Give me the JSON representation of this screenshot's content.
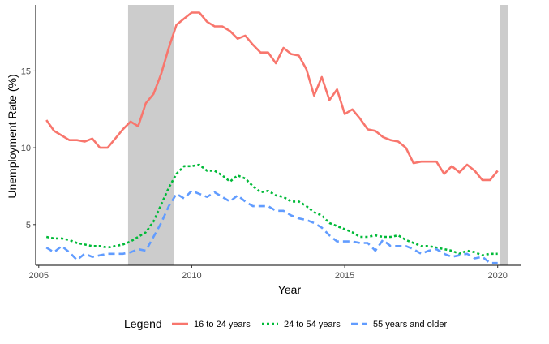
{
  "chart_data": {
    "type": "line",
    "xlabel": "Year",
    "ylabel": "Unemployment Rate (%)",
    "xlim": [
      2004.9,
      2020.75
    ],
    "ylim": [
      2.35,
      19.3
    ],
    "x_ticks": [
      2005,
      2010,
      2015,
      2020
    ],
    "y_ticks": [
      5,
      10,
      15
    ],
    "grid": false,
    "legend_title": "Legend",
    "legend_position": "bottom",
    "recession_shading": [
      {
        "start": 2007.92,
        "end": 2009.42
      },
      {
        "start": 2020.08,
        "end": 2020.33
      }
    ],
    "x": [
      2005.25,
      2005.5,
      2005.75,
      2006.0,
      2006.25,
      2006.5,
      2006.75,
      2007.0,
      2007.25,
      2007.5,
      2007.75,
      2008.0,
      2008.25,
      2008.5,
      2008.75,
      2009.0,
      2009.25,
      2009.5,
      2009.75,
      2010.0,
      2010.25,
      2010.5,
      2010.75,
      2011.0,
      2011.25,
      2011.5,
      2011.75,
      2012.0,
      2012.25,
      2012.5,
      2012.75,
      2013.0,
      2013.25,
      2013.5,
      2013.75,
      2014.0,
      2014.25,
      2014.5,
      2014.75,
      2015.0,
      2015.25,
      2015.5,
      2015.75,
      2016.0,
      2016.25,
      2016.5,
      2016.75,
      2017.0,
      2017.25,
      2017.5,
      2017.75,
      2018.0,
      2018.25,
      2018.5,
      2018.75,
      2019.0,
      2019.25,
      2019.5,
      2019.75,
      2020.0
    ],
    "series": [
      {
        "name": "16 to 24 years",
        "color": "#f8766d",
        "dash": "solid",
        "values": [
          11.8,
          11.1,
          10.8,
          10.5,
          10.5,
          10.4,
          10.6,
          10.0,
          10.0,
          10.6,
          11.2,
          11.7,
          11.4,
          12.9,
          13.5,
          14.8,
          16.5,
          18.0,
          18.4,
          18.8,
          18.8,
          18.2,
          17.9,
          17.9,
          17.6,
          17.1,
          17.3,
          16.7,
          16.2,
          16.2,
          15.5,
          16.5,
          16.1,
          16.0,
          15.1,
          13.4,
          14.6,
          13.1,
          13.8,
          12.2,
          12.5,
          11.9,
          11.2,
          11.1,
          10.7,
          10.5,
          10.4,
          10.0,
          9.0,
          9.1,
          9.1,
          9.1,
          8.3,
          8.8,
          8.4,
          8.9,
          8.5,
          7.9,
          7.9,
          8.5
        ]
      },
      {
        "name": "24 to 54 years",
        "color": "#00ba38",
        "dash": "dotted",
        "values": [
          4.2,
          4.1,
          4.1,
          4.0,
          3.8,
          3.7,
          3.6,
          3.6,
          3.5,
          3.6,
          3.7,
          3.9,
          4.2,
          4.5,
          5.2,
          6.3,
          7.4,
          8.3,
          8.8,
          8.8,
          8.9,
          8.5,
          8.5,
          8.2,
          7.8,
          8.2,
          8.0,
          7.5,
          7.1,
          7.2,
          6.9,
          6.8,
          6.5,
          6.5,
          6.2,
          5.8,
          5.6,
          5.1,
          4.9,
          4.7,
          4.5,
          4.2,
          4.2,
          4.3,
          4.2,
          4.2,
          4.3,
          4.0,
          3.8,
          3.6,
          3.6,
          3.5,
          3.4,
          3.3,
          3.1,
          3.3,
          3.2,
          3.0,
          3.1,
          3.1
        ]
      },
      {
        "name": "55 years and older",
        "color": "#619cff",
        "dash": "dashed",
        "values": [
          3.5,
          3.2,
          3.6,
          3.2,
          2.7,
          3.1,
          2.9,
          3.0,
          3.1,
          3.1,
          3.1,
          3.2,
          3.4,
          3.3,
          4.2,
          5.1,
          6.2,
          7.0,
          6.7,
          7.2,
          7.0,
          6.8,
          7.1,
          6.8,
          6.5,
          6.9,
          6.5,
          6.2,
          6.2,
          6.2,
          5.9,
          5.9,
          5.6,
          5.4,
          5.3,
          5.1,
          4.8,
          4.3,
          3.9,
          3.9,
          3.9,
          3.8,
          3.8,
          3.3,
          4.0,
          3.6,
          3.6,
          3.6,
          3.4,
          3.1,
          3.3,
          3.4,
          3.1,
          2.9,
          3.0,
          3.1,
          2.8,
          2.9,
          2.5,
          2.5
        ]
      }
    ]
  }
}
